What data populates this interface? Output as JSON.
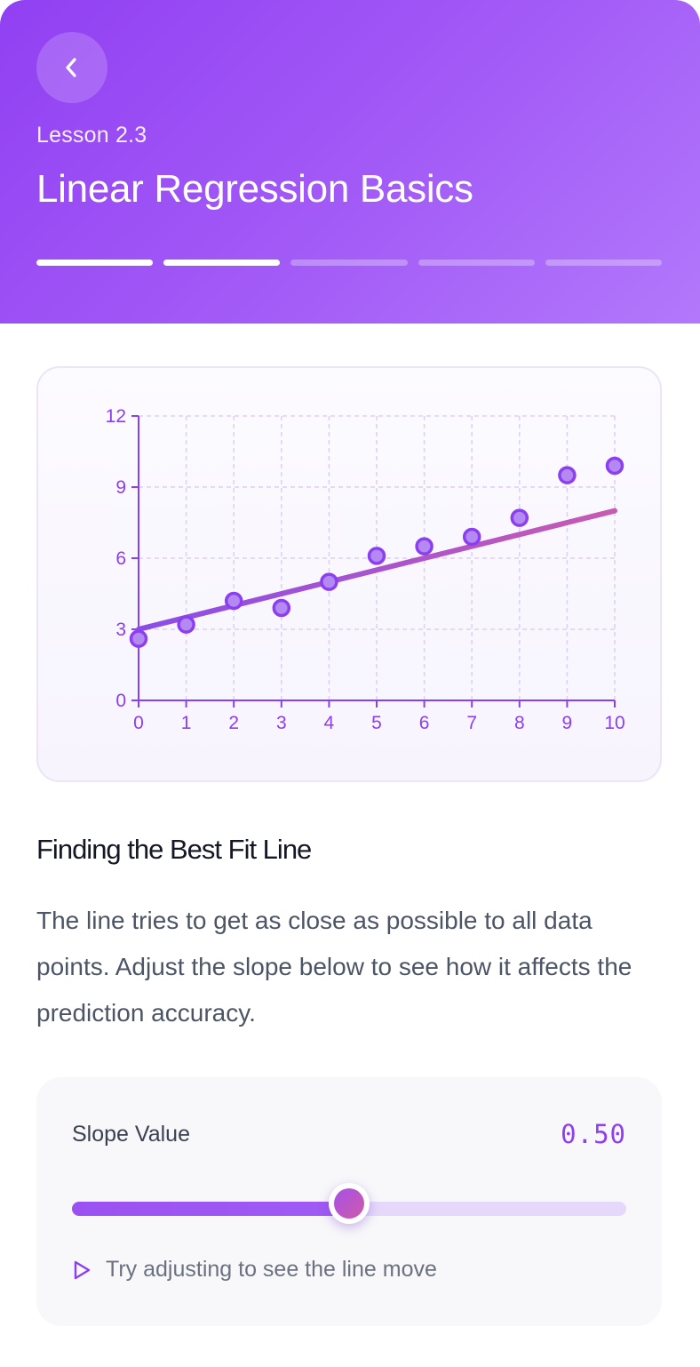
{
  "header": {
    "lesson": "Lesson 2.3",
    "title": "Linear Regression Basics",
    "progress": {
      "total_steps": 5,
      "completed_steps": 2
    }
  },
  "chart_data": {
    "type": "scatter",
    "x": [
      0,
      1,
      2,
      3,
      4,
      5,
      6,
      7,
      8,
      9,
      10
    ],
    "y": [
      2.6,
      3.2,
      4.2,
      3.9,
      5.0,
      6.1,
      6.5,
      6.9,
      7.7,
      9.5,
      9.9
    ],
    "fit_line": {
      "intercept": 3.0,
      "slope": 0.5
    },
    "xlim": [
      0,
      10
    ],
    "ylim": [
      0,
      12
    ],
    "xticks": [
      0,
      1,
      2,
      3,
      4,
      5,
      6,
      7,
      8,
      9,
      10
    ],
    "yticks": [
      0,
      3,
      6,
      9,
      12
    ],
    "grid": true,
    "colors": {
      "axis": "#8c3ff0",
      "grid": "#ddd0f5",
      "point": "#8c3ff0",
      "line_start": "#8b4de8",
      "line_end": "#c65bb2"
    }
  },
  "content": {
    "heading": "Finding the Best Fit Line",
    "body": "The line tries to get as close as possible to all data points. Adjust the slope below to see how it affects the prediction accuracy."
  },
  "slider": {
    "label": "Slope Value",
    "value_display": "0.50",
    "value_fraction": 0.5,
    "hint": "Try adjusting to see the line move"
  },
  "icons": {
    "back": "chevron-left-icon",
    "hint": "play-outline-icon"
  }
}
